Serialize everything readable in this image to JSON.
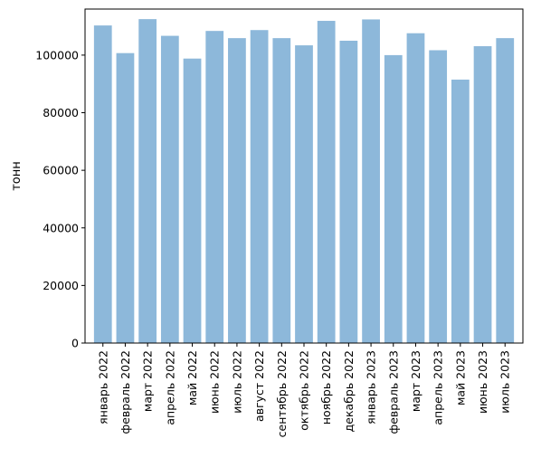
{
  "chart_data": {
    "type": "bar",
    "categories": [
      "январь 2022",
      "февраль 2022",
      "март 2022",
      "апрель 2022",
      "май 2022",
      "июнь 2022",
      "июль 2022",
      "август 2022",
      "сентябрь 2022",
      "октябрь 2022",
      "ноябрь 2022",
      "декабрь 2022",
      "январь 2023",
      "февраль 2023",
      "март 2023",
      "апрель 2023",
      "май 2023",
      "июнь 2023",
      "июль 2023"
    ],
    "values": [
      110300,
      100700,
      112500,
      106700,
      98800,
      108400,
      105900,
      108700,
      105900,
      103400,
      111900,
      105000,
      112400,
      100000,
      107600,
      101700,
      91500,
      103100,
      105900
    ],
    "ylabel": "тонн",
    "xlabel": "",
    "title": "",
    "ylim": [
      0,
      116000
    ],
    "yticks": [
      0,
      20000,
      40000,
      60000,
      80000,
      100000
    ],
    "grid": false,
    "colors": {
      "bar": "#8db8da",
      "axis": "#000000",
      "background": "#ffffff"
    }
  }
}
